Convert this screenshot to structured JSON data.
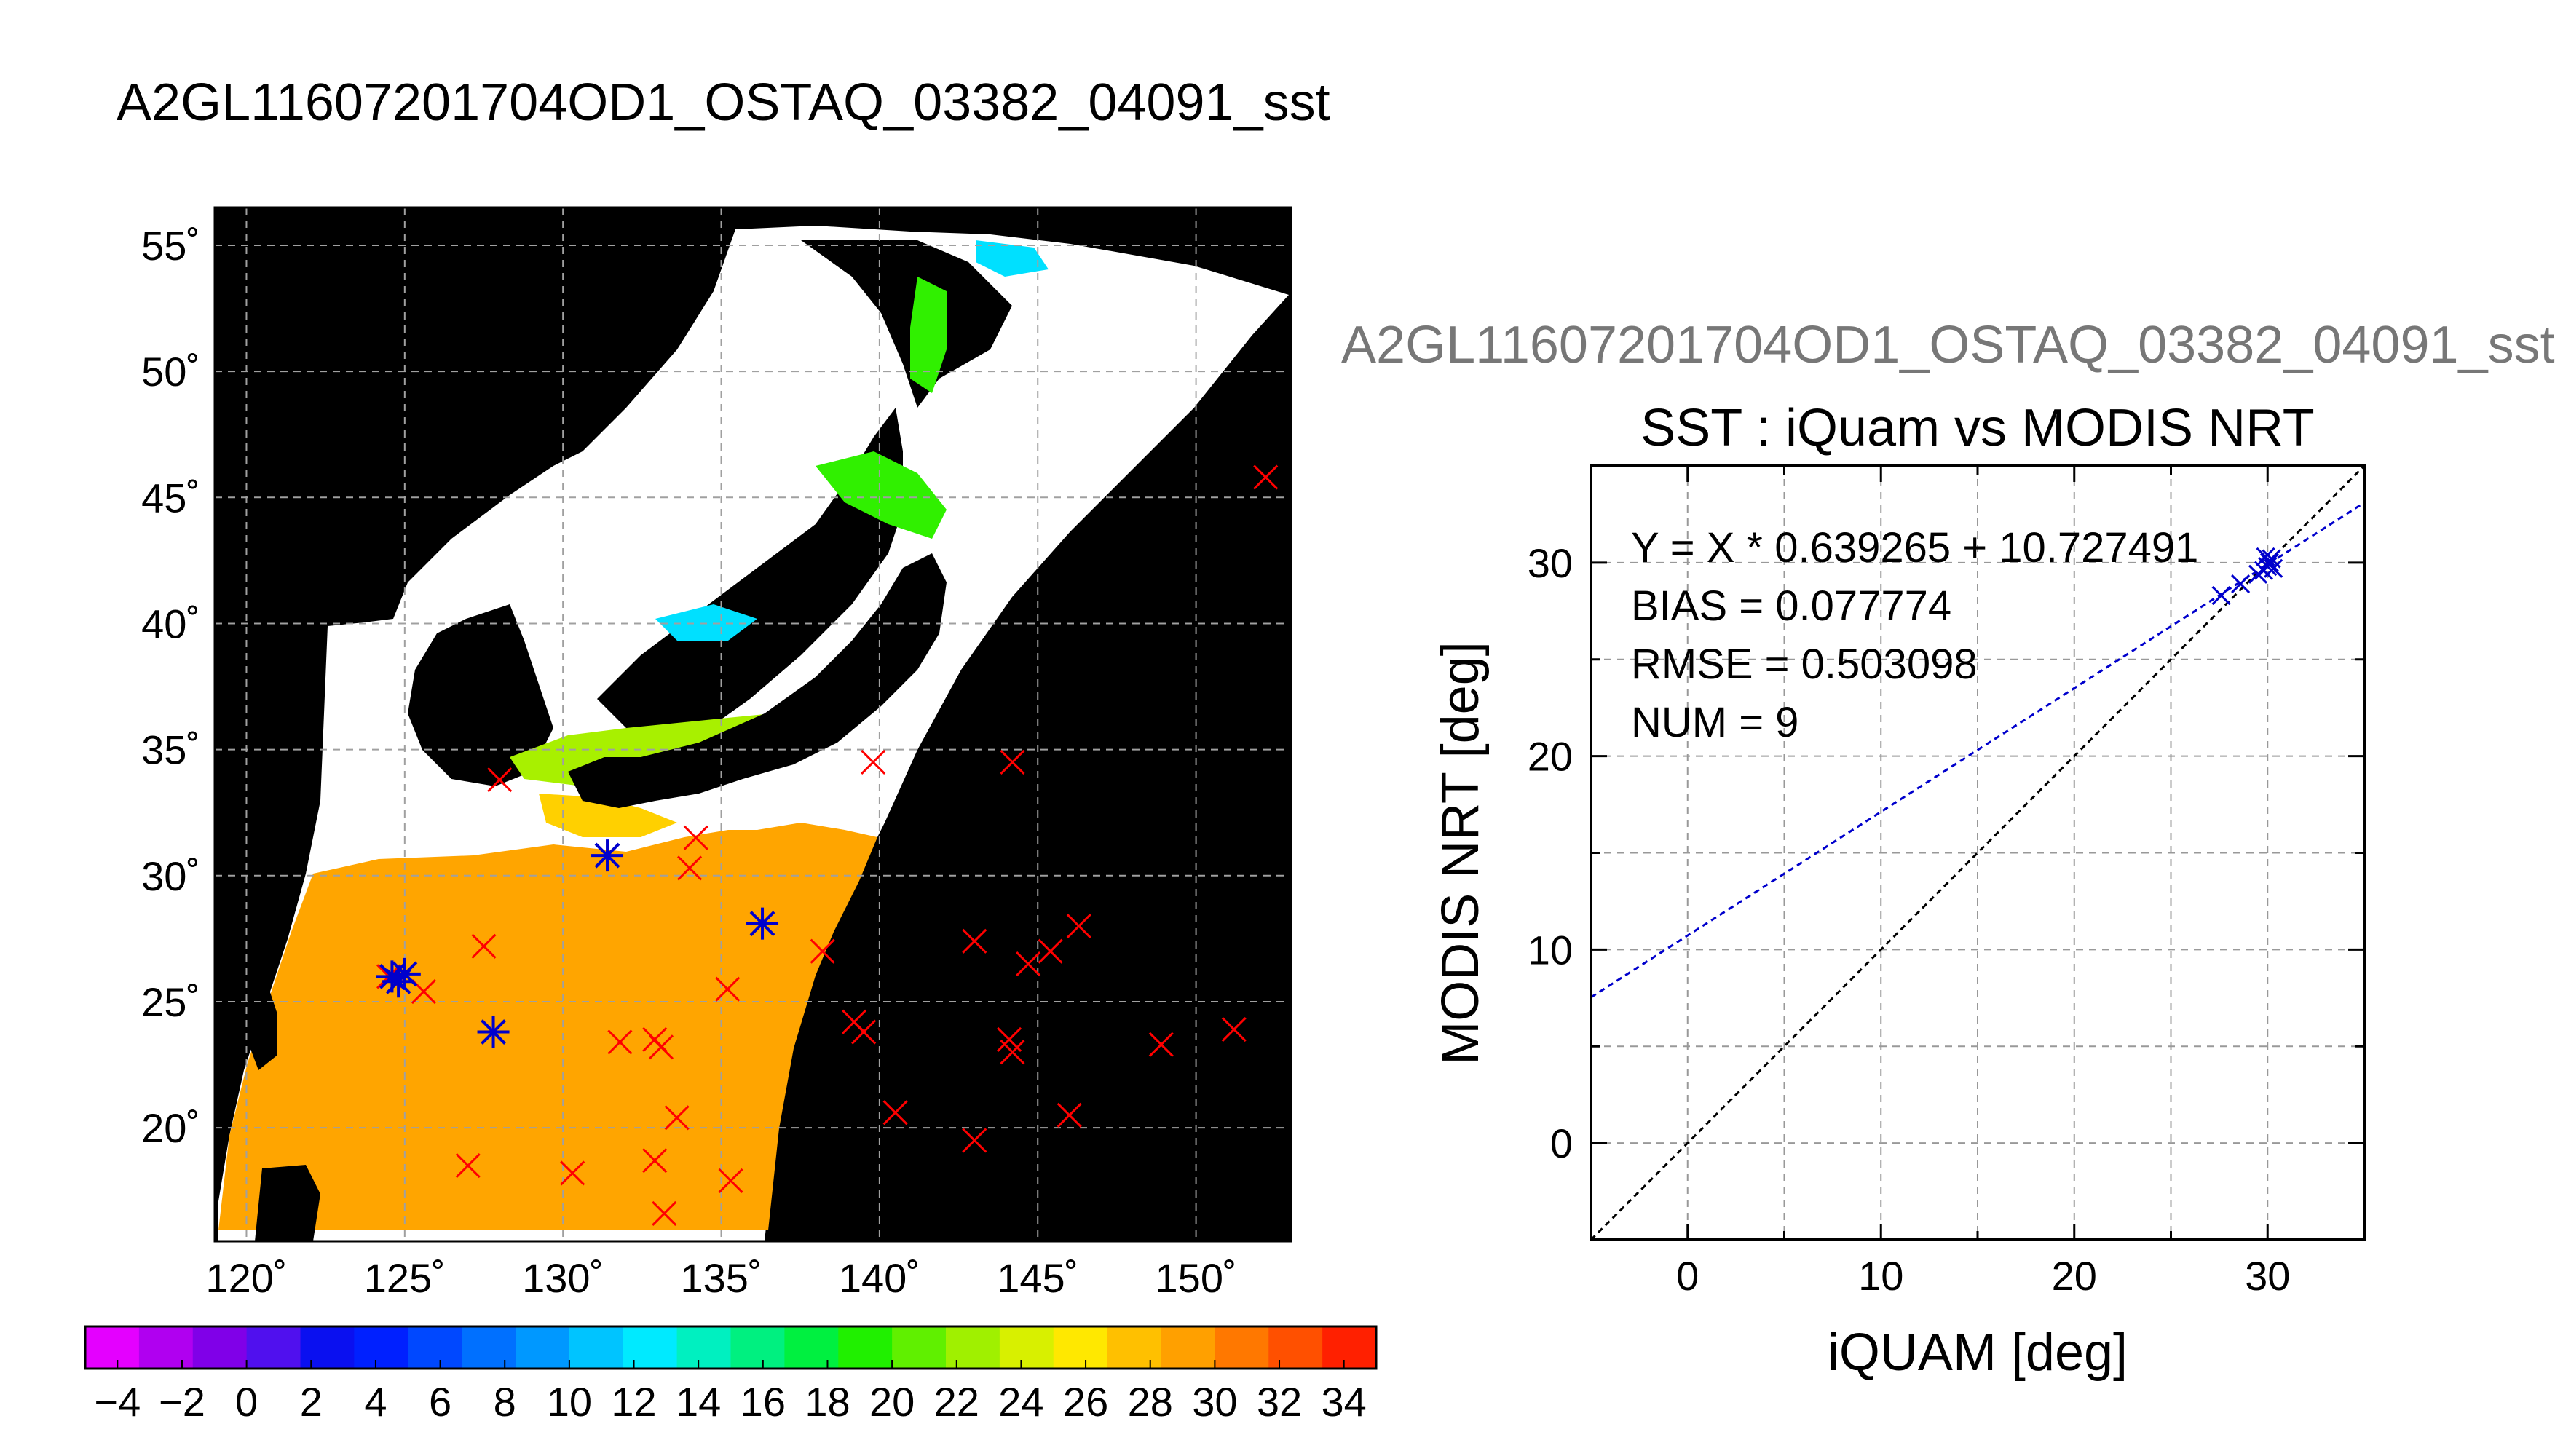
{
  "page_title": "A2GL11607201704OD1_OSTAQ_03382_04091_sst",
  "colors": {
    "land": "#ffffff",
    "no_data": "#000000",
    "buoy_marker": "#ff0000",
    "matchup_marker": "#0000cc",
    "fit_line": "#0000cc",
    "identity_line": "#000000"
  },
  "chart_data": [
    {
      "type": "map",
      "lon_ticks": [
        "120˚",
        "125˚",
        "130˚",
        "135˚",
        "140˚",
        "145˚",
        "150˚"
      ],
      "lat_ticks": [
        "55˚",
        "50˚",
        "45˚",
        "40˚",
        "35˚",
        "30˚",
        "25˚",
        "20˚"
      ],
      "lon_range": [
        119,
        153
      ],
      "lat_range": [
        15.5,
        56.5
      ],
      "grid": true,
      "colorbar": {
        "range": [
          -5,
          35
        ],
        "tick_labels": [
          "−4",
          "−2",
          "0",
          "2",
          "4",
          "6",
          "8",
          "10",
          "12",
          "14",
          "16",
          "18",
          "20",
          "22",
          "24",
          "26",
          "28",
          "30",
          "32",
          "34"
        ],
        "colors": [
          "#e400ff",
          "#b000f0",
          "#8000e8",
          "#5010ee",
          "#0a10f0",
          "#0020ff",
          "#0048ff",
          "#0070ff",
          "#0098ff",
          "#00c4ff",
          "#00eaff",
          "#00f0c0",
          "#00f080",
          "#00f040",
          "#20f000",
          "#60f000",
          "#a0f000",
          "#d8f000",
          "#ffe800",
          "#ffc000",
          "#ffa000",
          "#ff7800",
          "#ff5000",
          "#ff2000"
        ]
      },
      "buoys": [
        [
          152.2,
          45.8
        ],
        [
          128.0,
          33.8
        ],
        [
          139.8,
          34.5
        ],
        [
          144.2,
          34.5
        ],
        [
          134.2,
          31.5
        ],
        [
          134.0,
          30.3
        ],
        [
          127.5,
          27.2
        ],
        [
          138.2,
          27.0
        ],
        [
          143.0,
          27.4
        ],
        [
          146.3,
          28.0
        ],
        [
          145.4,
          27.0
        ],
        [
          144.7,
          26.5
        ],
        [
          135.2,
          25.5
        ],
        [
          139.2,
          24.2
        ],
        [
          139.5,
          23.8
        ],
        [
          144.1,
          23.5
        ],
        [
          144.2,
          23.0
        ],
        [
          148.9,
          23.3
        ],
        [
          151.2,
          23.9
        ],
        [
          131.8,
          23.4
        ],
        [
          132.9,
          23.5
        ],
        [
          133.1,
          23.2
        ],
        [
          133.6,
          20.4
        ],
        [
          140.5,
          20.6
        ],
        [
          146.0,
          20.5
        ],
        [
          143.0,
          19.5
        ],
        [
          127.0,
          18.5
        ],
        [
          130.3,
          18.2
        ],
        [
          132.9,
          18.7
        ],
        [
          135.3,
          17.9
        ],
        [
          133.2,
          16.6
        ],
        [
          124.5,
          26.0
        ],
        [
          125.6,
          25.4
        ]
      ],
      "matchups": [
        [
          124.6,
          26.0
        ],
        [
          125.0,
          26.1
        ],
        [
          124.8,
          25.8
        ],
        [
          127.8,
          23.8
        ],
        [
          131.4,
          30.8
        ],
        [
          136.3,
          28.1
        ]
      ]
    },
    {
      "type": "scatter",
      "panel_label": "A2GL11607201704OD1_OSTAQ_03382_04091_sst",
      "title": "SST : iQuam vs MODIS NRT",
      "xlabel": "iQUAM [deg]",
      "ylabel": "MODIS NRT [deg]",
      "xlim": [
        -5,
        35
      ],
      "ylim": [
        -5,
        35
      ],
      "x_ticks": [
        0,
        10,
        20,
        30
      ],
      "y_ticks": [
        0,
        10,
        20,
        30
      ],
      "grid": true,
      "fit": {
        "slope": 0.639265,
        "intercept": 10.727491
      },
      "points": [
        {
          "x": 27.6,
          "y": 28.3
        },
        {
          "x": 28.6,
          "y": 28.9
        },
        {
          "x": 29.5,
          "y": 29.4
        },
        {
          "x": 29.8,
          "y": 29.6
        },
        {
          "x": 30.0,
          "y": 29.8
        },
        {
          "x": 30.1,
          "y": 30.0
        },
        {
          "x": 30.2,
          "y": 30.2
        },
        {
          "x": 29.9,
          "y": 30.3
        },
        {
          "x": 30.3,
          "y": 29.7
        }
      ],
      "stats": [
        "Y = X * 0.639265 + 10.727491",
        "BIAS = 0.077774",
        "RMSE = 0.503098",
        "NUM = 9"
      ]
    }
  ]
}
